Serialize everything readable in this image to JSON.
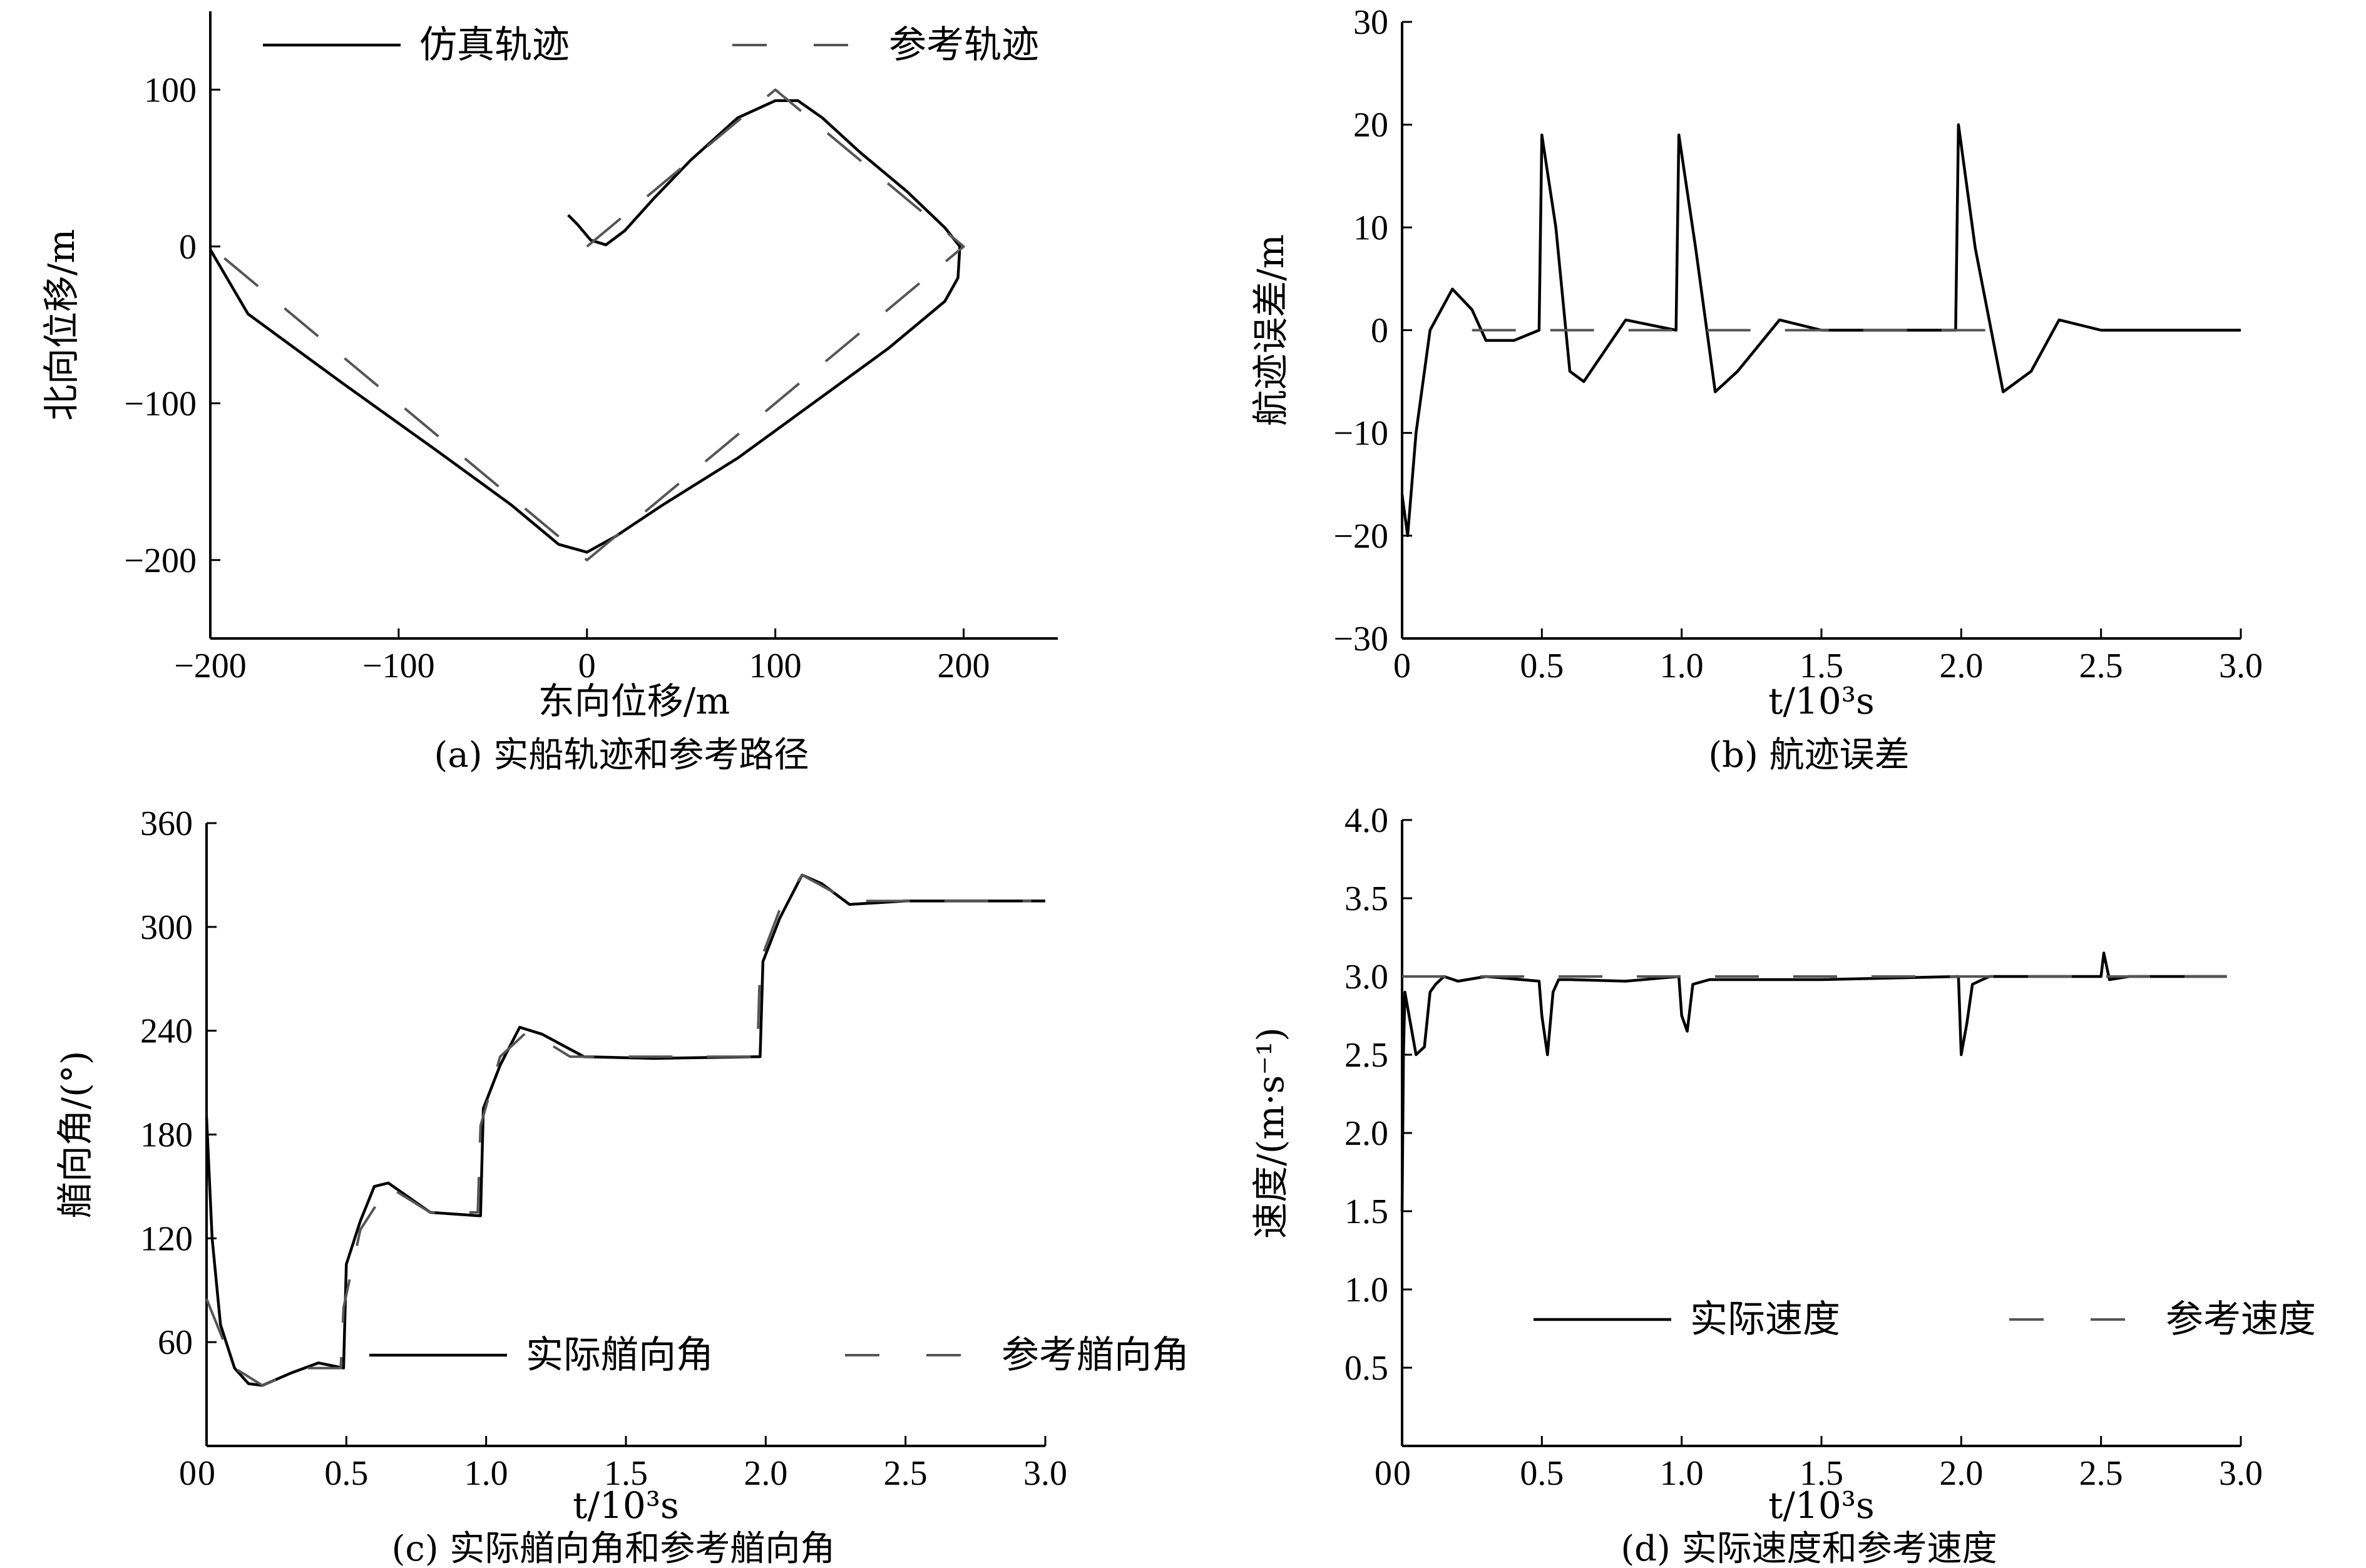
{
  "chart_data": [
    {
      "id": "a",
      "type": "line",
      "caption": "(a) 实船轨迹和参考路径",
      "xlabel": "东向位移/m",
      "ylabel": "北向位移/m",
      "xlim": [
        -200,
        250
      ],
      "ylim": [
        -250,
        150
      ],
      "xticks": [
        -200,
        -100,
        0,
        100,
        200
      ],
      "xtick_labels": [
        "−200",
        "−100",
        "0",
        "100",
        "200"
      ],
      "yticks": [
        -200,
        -100,
        0,
        100
      ],
      "ytick_labels": [
        "−200",
        "−100",
        "0",
        "100"
      ],
      "legend": {
        "position": "top",
        "entries": [
          "仿真轨迹",
          "参考轨迹"
        ]
      },
      "series": [
        {
          "name": "仿真轨迹",
          "style": "solid",
          "x": [
            -10,
            -5,
            2,
            10,
            20,
            35,
            55,
            80,
            100,
            112,
            125,
            145,
            170,
            190,
            198,
            197,
            190,
            160,
            120,
            80,
            40,
            15,
            0,
            -15,
            -40,
            -80,
            -130,
            -180,
            -200
          ],
          "y": [
            20,
            14,
            4,
            1,
            10,
            30,
            55,
            82,
            93,
            93,
            82,
            60,
            35,
            12,
            0,
            -20,
            -35,
            -65,
            -100,
            -135,
            -165,
            -185,
            -195,
            -190,
            -165,
            -130,
            -87,
            -43,
            -2
          ]
        },
        {
          "name": "参考轨迹",
          "style": "dashed",
          "x": [
            0,
            100,
            200,
            0,
            -200
          ],
          "y": [
            0,
            100,
            0,
            -200,
            0
          ]
        }
      ]
    },
    {
      "id": "b",
      "type": "line",
      "caption": "(b) 航迹误差",
      "xlabel": "t/10³s",
      "ylabel": "航迹误差/m",
      "xlim": [
        0,
        3.0
      ],
      "ylim": [
        -30,
        30
      ],
      "xticks": [
        0,
        0.5,
        1.0,
        1.5,
        2.0,
        2.5,
        3.0
      ],
      "xtick_labels": [
        "0",
        "0.5",
        "1.0",
        "1.5",
        "2.0",
        "2.5",
        "3.0"
      ],
      "yticks": [
        -30,
        -20,
        -10,
        0,
        10,
        20,
        30
      ],
      "ytick_labels": [
        "−30",
        "−20",
        "−10",
        "0",
        "10",
        "20",
        "30"
      ],
      "series": [
        {
          "style": "solid",
          "x": [
            0,
            0.02,
            0.05,
            0.1,
            0.18,
            0.25,
            0.3,
            0.4,
            0.49,
            0.5,
            0.55,
            0.6,
            0.65,
            0.8,
            0.98,
            0.99,
            1.05,
            1.12,
            1.2,
            1.35,
            1.5,
            1.98,
            1.99,
            2.05,
            2.15,
            2.25,
            2.35,
            2.5,
            3.0
          ],
          "y": [
            -16,
            -20,
            -10,
            0,
            4,
            2,
            -1,
            -1,
            0,
            19,
            10,
            -4,
            -5,
            1,
            0,
            19,
            8,
            -6,
            -4,
            1,
            0,
            0,
            20,
            8,
            -6,
            -4,
            1,
            0,
            0
          ]
        },
        {
          "style": "dashed",
          "x": [
            0.25,
            2.1
          ],
          "y": [
            0,
            0
          ]
        }
      ]
    },
    {
      "id": "c",
      "type": "line",
      "caption": "(c) 实际艏向角和参考艏向角",
      "xlabel": "t/10³s",
      "ylabel": "艏向角/(°)",
      "xlim": [
        0,
        3.0
      ],
      "ylim": [
        0,
        360
      ],
      "xticks": [
        0,
        0.5,
        1.0,
        1.5,
        2.0,
        2.5,
        3.0
      ],
      "xtick_labels": [
        "0",
        "0.5",
        "1.0",
        "1.5",
        "2.0",
        "2.5",
        "3.0"
      ],
      "yticks": [
        60,
        120,
        180,
        240,
        300,
        360
      ],
      "ytick_labels": [
        "60",
        "120",
        "180",
        "240",
        "300",
        "360"
      ],
      "legend": {
        "position": "bottom-right",
        "entries": [
          "实际艏向角",
          "参考艏向角"
        ]
      },
      "series": [
        {
          "name": "实际艏向角",
          "style": "solid",
          "x": [
            0,
            0.02,
            0.05,
            0.1,
            0.15,
            0.2,
            0.3,
            0.4,
            0.49,
            0.5,
            0.55,
            0.6,
            0.65,
            0.8,
            0.98,
            0.99,
            1.05,
            1.12,
            1.2,
            1.35,
            1.6,
            1.98,
            1.99,
            2.05,
            2.13,
            2.2,
            2.3,
            2.5,
            3.0
          ],
          "y": [
            190,
            120,
            70,
            45,
            36,
            35,
            42,
            48,
            45,
            105,
            130,
            150,
            152,
            135,
            133,
            195,
            220,
            242,
            238,
            225,
            224,
            225,
            280,
            305,
            330,
            325,
            313,
            315,
            315
          ]
        },
        {
          "name": "参考艏向角",
          "style": "dashed",
          "x": [
            0,
            0.05,
            0.1,
            0.2,
            0.35,
            0.48,
            0.49,
            0.55,
            0.65,
            0.8,
            0.97,
            0.98,
            1.05,
            1.15,
            1.3,
            1.97,
            1.98,
            2.05,
            2.13,
            2.3,
            2.95
          ],
          "y": [
            85,
            65,
            45,
            35,
            45,
            45,
            80,
            125,
            150,
            135,
            135,
            185,
            225,
            240,
            225,
            225,
            280,
            310,
            330,
            315,
            315
          ]
        }
      ]
    },
    {
      "id": "d",
      "type": "line",
      "caption": "(d) 实际速度和参考速度",
      "xlabel": "t/10³s",
      "ylabel": "速度/(m·s⁻¹)",
      "xlim": [
        0,
        3.0
      ],
      "ylim": [
        0,
        4.0
      ],
      "xticks": [
        0,
        0.5,
        1.0,
        1.5,
        2.0,
        2.5,
        3.0
      ],
      "xtick_labels": [
        "0",
        "0.5",
        "1.0",
        "1.5",
        "2.0",
        "2.5",
        "3.0"
      ],
      "yticks": [
        0.5,
        1.0,
        1.5,
        2.0,
        2.5,
        3.0,
        3.5,
        4.0
      ],
      "ytick_labels": [
        "0.5",
        "1.0",
        "1.5",
        "2.0",
        "2.5",
        "3.0",
        "3.5",
        "4.0"
      ],
      "legend": {
        "position": "bottom-right",
        "entries": [
          "实际速度",
          "参考速度"
        ]
      },
      "series": [
        {
          "name": "实际速度",
          "style": "solid",
          "x": [
            0,
            0.005,
            0.01,
            0.03,
            0.05,
            0.08,
            0.1,
            0.12,
            0.15,
            0.2,
            0.3,
            0.49,
            0.5,
            0.52,
            0.54,
            0.56,
            0.6,
            0.8,
            0.99,
            1.0,
            1.02,
            1.04,
            1.1,
            1.5,
            1.99,
            2.0,
            2.02,
            2.04,
            2.1,
            2.5,
            2.51,
            2.53,
            2.6,
            2.95
          ],
          "y": [
            1.5,
            2.5,
            2.9,
            2.7,
            2.5,
            2.55,
            2.9,
            2.95,
            3.0,
            2.97,
            3.0,
            2.97,
            2.75,
            2.5,
            2.9,
            2.98,
            2.98,
            2.97,
            3.0,
            2.75,
            2.65,
            2.95,
            2.98,
            2.98,
            3.0,
            2.5,
            2.7,
            2.95,
            3.0,
            3.0,
            3.15,
            2.98,
            3.0,
            3.0
          ]
        },
        {
          "name": "参考速度",
          "style": "dashed",
          "x": [
            0,
            2.95
          ],
          "y": [
            3.0,
            3.0
          ]
        }
      ]
    }
  ]
}
